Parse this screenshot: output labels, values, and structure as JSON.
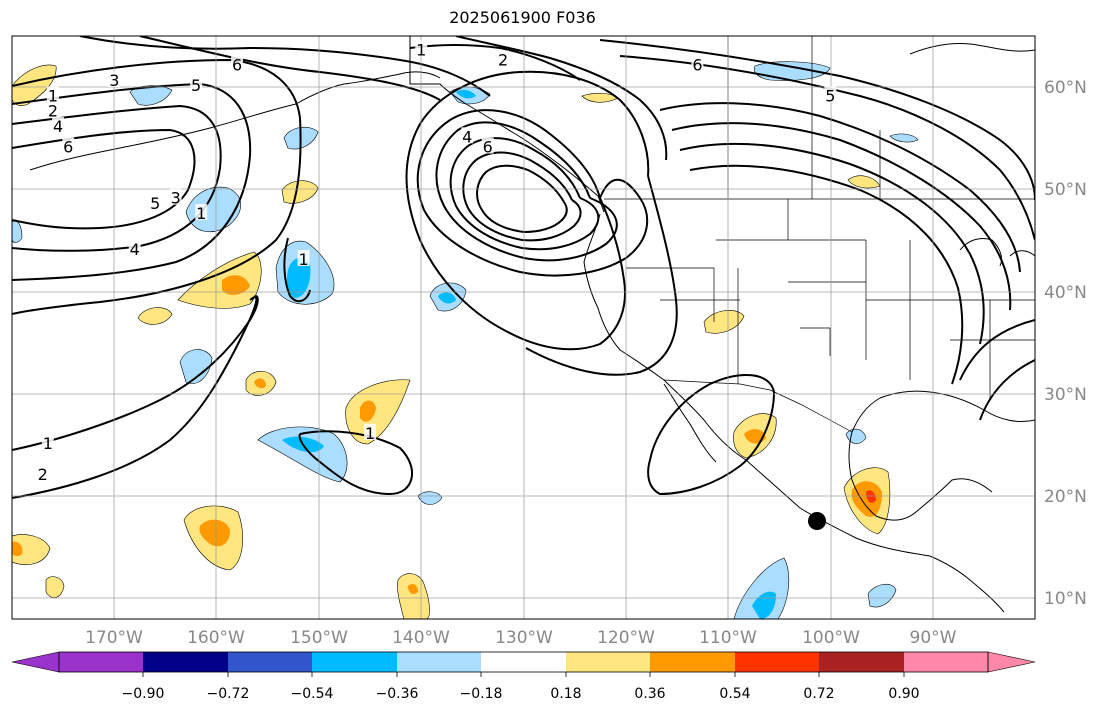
{
  "title": "2025061900 F036",
  "map": {
    "projection": "PlateCarree",
    "extent": {
      "lon_min": -180,
      "lon_max": -80,
      "lat_min": 8,
      "lat_max": 65
    },
    "lon_ticks": [
      "170°W",
      "160°W",
      "150°W",
      "140°W",
      "130°W",
      "120°W",
      "110°W",
      "100°W",
      "90°W"
    ],
    "lat_ticks": [
      "60°N",
      "50°N",
      "40°N",
      "30°N",
      "20°N",
      "10°N"
    ],
    "gridlines": true,
    "point_marker": {
      "lon": -101.5,
      "lat": 17.5,
      "color": "#000000"
    }
  },
  "contours": {
    "color": "#000000",
    "labels": [
      {
        "text": "1",
        "lon": -176,
        "lat": 59
      },
      {
        "text": "2",
        "lon": -176,
        "lat": 57.5
      },
      {
        "text": "4",
        "lon": -175.5,
        "lat": 56
      },
      {
        "text": "6",
        "lon": -174.5,
        "lat": 54
      },
      {
        "text": "3",
        "lon": -170,
        "lat": 60.5
      },
      {
        "text": "5",
        "lon": -162,
        "lat": 60
      },
      {
        "text": "6",
        "lon": -158,
        "lat": 62
      },
      {
        "text": "5",
        "lon": -166,
        "lat": 48.5
      },
      {
        "text": "3",
        "lon": -164,
        "lat": 49
      },
      {
        "text": "1",
        "lon": -161.5,
        "lat": 47.5
      },
      {
        "text": "4",
        "lon": -168,
        "lat": 44
      },
      {
        "text": "1",
        "lon": -176.5,
        "lat": 25
      },
      {
        "text": "2",
        "lon": -177,
        "lat": 22
      },
      {
        "text": "1",
        "lon": -140,
        "lat": 63.5
      },
      {
        "text": "2",
        "lon": -132,
        "lat": 62.5
      },
      {
        "text": "4",
        "lon": -135.5,
        "lat": 55
      },
      {
        "text": "6",
        "lon": -133.5,
        "lat": 54
      },
      {
        "text": "6",
        "lon": -113,
        "lat": 62
      },
      {
        "text": "5",
        "lon": -100,
        "lat": 59
      },
      {
        "text": "1",
        "lon": -151.5,
        "lat": 43
      },
      {
        "text": "1",
        "lon": -145,
        "lat": 26
      }
    ]
  },
  "colorbar": {
    "tick_labels": [
      "−0.90",
      "−0.72",
      "−0.54",
      "−0.36",
      "−0.18",
      "0.18",
      "0.36",
      "0.54",
      "0.72",
      "0.90"
    ],
    "colors": [
      "#9933cc",
      "#000088",
      "#3355cc",
      "#00bbff",
      "#aaddff",
      "#ffffff",
      "#ffe680",
      "#ff9900",
      "#ff3300",
      "#aa2222",
      "#ff88aa"
    ]
  },
  "colors": {
    "coast": "#000000",
    "grid": "#999999",
    "shade_pos_1": "#ffe680",
    "shade_pos_2": "#ff9900",
    "shade_pos_3": "#ff3300",
    "shade_neg_1": "#aaddff",
    "shade_neg_2": "#00bbff"
  }
}
